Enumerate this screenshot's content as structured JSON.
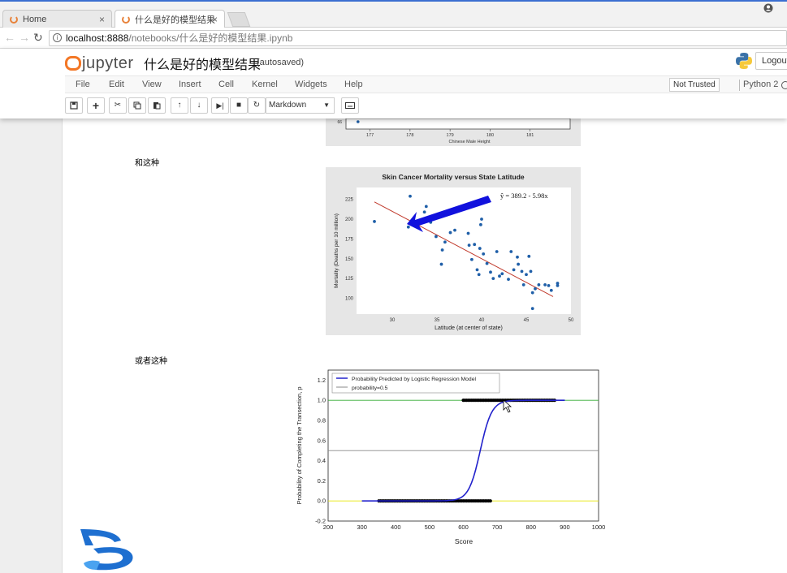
{
  "browser": {
    "tabs": [
      {
        "label": "Home",
        "active": false
      },
      {
        "label": "什么是好的模型结果",
        "active": true
      }
    ],
    "url_host": "localhost:8888",
    "url_path": "/notebooks/什么是好的模型结果.ipynb"
  },
  "jupyter": {
    "logo_text": "jupyter",
    "notebook_title": "什么是好的模型结果",
    "autosave": "(autosaved)",
    "logout_label": "Logout",
    "menu": [
      "File",
      "Edit",
      "View",
      "Insert",
      "Cell",
      "Kernel",
      "Widgets",
      "Help"
    ],
    "trust_label": "Not Trusted",
    "kernel_label": "Python 2",
    "cell_type": "Markdown"
  },
  "notebook": {
    "text_1": "和这种",
    "text_2": "或者这种"
  },
  "chart_data": [
    {
      "type": "scatter",
      "xlabel": "Chinese Male Height",
      "ylabel": "",
      "visible_y_tick": "66",
      "x_ticks": [
        "177",
        "178",
        "179",
        "180",
        "181"
      ],
      "points": [
        {
          "x": 176.7,
          "y": 66
        }
      ]
    },
    {
      "type": "scatter",
      "title": "Skin Cancer Mortality versus State Latitude",
      "xlabel": "Latitude (at center of state)",
      "ylabel": "Mortality (Deaths per 10 million)",
      "xlim": [
        26,
        50
      ],
      "ylim": [
        80,
        240
      ],
      "x_ticks": [
        30,
        35,
        40,
        45,
        50
      ],
      "y_ticks": [
        100,
        125,
        150,
        175,
        200,
        225
      ],
      "equation": "ŷ = 389.2 - 5.98x",
      "regression": {
        "intercept": 389.2,
        "slope": -5.98
      },
      "points": [
        [
          28.0,
          197
        ],
        [
          32.0,
          229
        ],
        [
          31.8,
          190
        ],
        [
          33.8,
          216
        ],
        [
          33.6,
          209
        ],
        [
          34.3,
          196
        ],
        [
          34.9,
          178
        ],
        [
          35.6,
          161
        ],
        [
          35.9,
          171
        ],
        [
          35.5,
          143
        ],
        [
          36.5,
          183
        ],
        [
          37.0,
          186
        ],
        [
          38.5,
          182
        ],
        [
          38.6,
          167
        ],
        [
          38.9,
          149
        ],
        [
          39.2,
          168
        ],
        [
          39.5,
          136
        ],
        [
          39.7,
          130
        ],
        [
          40.0,
          200
        ],
        [
          39.9,
          193
        ],
        [
          39.8,
          163
        ],
        [
          40.2,
          156
        ],
        [
          40.6,
          144
        ],
        [
          41.0,
          133
        ],
        [
          41.3,
          125
        ],
        [
          41.7,
          159
        ],
        [
          42.0,
          128
        ],
        [
          42.3,
          131
        ],
        [
          43.3,
          159
        ],
        [
          43.0,
          124
        ],
        [
          43.6,
          136
        ],
        [
          44.1,
          143
        ],
        [
          44.5,
          134
        ],
        [
          44.0,
          152
        ],
        [
          44.7,
          117
        ],
        [
          45.0,
          130
        ],
        [
          45.5,
          134
        ],
        [
          45.3,
          153
        ],
        [
          46.0,
          112
        ],
        [
          46.4,
          117
        ],
        [
          45.7,
          107
        ],
        [
          47.1,
          117
        ],
        [
          47.5,
          116
        ],
        [
          47.8,
          110
        ],
        [
          48.5,
          116
        ],
        [
          48.5,
          119
        ],
        [
          45.7,
          87
        ]
      ]
    },
    {
      "type": "line",
      "xlabel": "Score",
      "ylabel": "Probability of Completing the Transection, p",
      "xlim": [
        200,
        1000
      ],
      "ylim": [
        -0.2,
        1.3
      ],
      "x_ticks": [
        200,
        300,
        400,
        500,
        600,
        700,
        800,
        900,
        1000
      ],
      "y_ticks": [
        "-0.2",
        "0.0",
        "0.2",
        "0.4",
        "0.6",
        "0.8",
        "1.0",
        "1.2"
      ],
      "series": [
        {
          "name": "Probability Predicted by Logistic Regression Model",
          "color": "#2222cc",
          "logistic": {
            "midpoint": 650,
            "scale": 17
          },
          "x_range": [
            300,
            900
          ]
        },
        {
          "name": "probability=0.5",
          "color": "#888888",
          "constant": 0.5
        }
      ],
      "reference_lines": [
        {
          "y": 1.0,
          "color": "#33aa33"
        },
        {
          "y": 0.0,
          "color": "#e6e600"
        }
      ],
      "observations": [
        {
          "label": 0,
          "x_range": [
            350,
            680
          ]
        },
        {
          "label": 1,
          "x_range": [
            600,
            870
          ]
        }
      ]
    }
  ],
  "colors": {
    "jupyter_orange": "#f37726",
    "point_blue": "#1f5fa8",
    "fit_red": "#c0392b",
    "arrow_blue": "#1111dd"
  }
}
